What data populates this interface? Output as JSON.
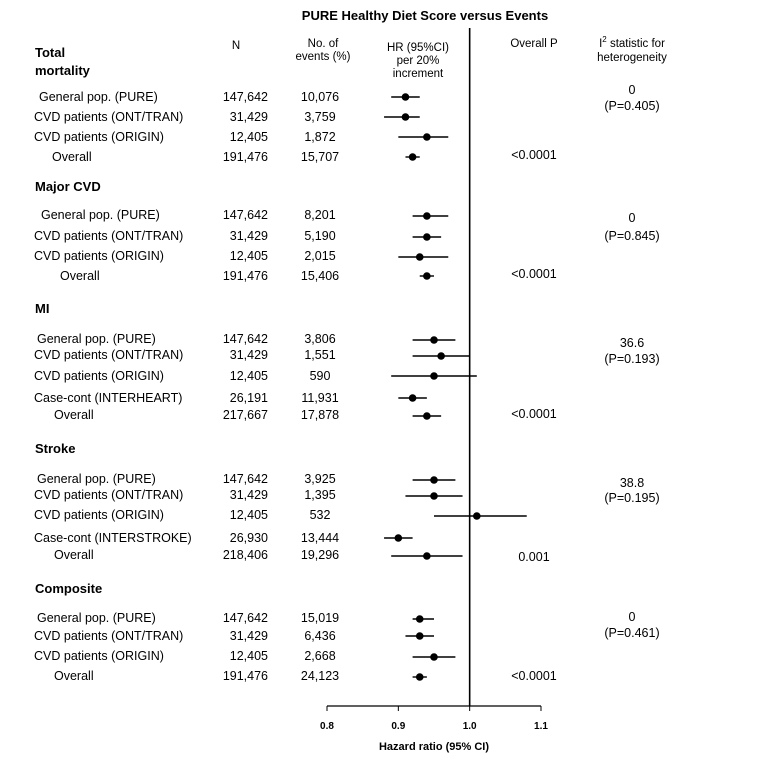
{
  "chart_data": {
    "type": "forest",
    "title": "PURE Healthy Diet Score versus Events",
    "xlabel": "Hazard ratio (95% CI)",
    "xlim": [
      0.8,
      1.1
    ],
    "xticks": [
      "0.8",
      "0.9",
      "1.0",
      "1.1"
    ],
    "reference_line": 1.0,
    "headers": {
      "n": "N",
      "events_line1": "No. of",
      "events_line2": "events (%)",
      "hr_line1": "HR (95%CI)",
      "hr_line2": "per 20%",
      "hr_line3": "increment",
      "p": "Overall P",
      "i2_prefix": "I",
      "i2_sup": "2",
      "i2_line1_rest": " statistic for",
      "i2_line2": "heterogeneity"
    },
    "groups": [
      {
        "name_line1": "Total",
        "name_line2": "mortality",
        "i2": "0",
        "i2_p": "(P=0.405)",
        "rows": [
          {
            "label": "General pop. (PURE)",
            "n": "147,642",
            "events": "10,076",
            "hr": 0.91,
            "lo": 0.89,
            "hi": 0.93
          },
          {
            "label": "CVD patients (ONT/TRAN)",
            "n": "31,429",
            "events": "3,759",
            "hr": 0.91,
            "lo": 0.88,
            "hi": 0.93
          },
          {
            "label": "CVD patients (ORIGIN)",
            "n": "12,405",
            "events": "1,872",
            "hr": 0.94,
            "lo": 0.9,
            "hi": 0.97
          },
          {
            "label": "Overall",
            "n": "191,476",
            "events": "15,707",
            "hr": 0.92,
            "lo": 0.91,
            "hi": 0.93,
            "p": "<0.0001"
          }
        ]
      },
      {
        "name_line1": "Major CVD",
        "name_line2": "",
        "i2": "0",
        "i2_p": "(P=0.845)",
        "rows": [
          {
            "label": "General pop. (PURE)",
            "n": "147,642",
            "events": "8,201",
            "hr": 0.94,
            "lo": 0.92,
            "hi": 0.97
          },
          {
            "label": "CVD patients (ONT/TRAN)",
            "n": "31,429",
            "events": "5,190",
            "hr": 0.94,
            "lo": 0.92,
            "hi": 0.96
          },
          {
            "label": "CVD patients (ORIGIN)",
            "n": "12,405",
            "events": "2,015",
            "hr": 0.93,
            "lo": 0.9,
            "hi": 0.97
          },
          {
            "label": "Overall",
            "n": "191,476",
            "events": "15,406",
            "hr": 0.94,
            "lo": 0.93,
            "hi": 0.95,
            "p": "<0.0001"
          }
        ]
      },
      {
        "name_line1": "MI",
        "name_line2": "",
        "i2": "36.6",
        "i2_p": "(P=0.193)",
        "rows": [
          {
            "label": "General pop. (PURE)",
            "n": "147,642",
            "events": "3,806",
            "hr": 0.95,
            "lo": 0.92,
            "hi": 0.98
          },
          {
            "label": "CVD patients (ONT/TRAN)",
            "n": "31,429",
            "events": "1,551",
            "hr": 0.96,
            "lo": 0.92,
            "hi": 1.0
          },
          {
            "label": "CVD patients (ORIGIN)",
            "n": "12,405",
            "events": "590",
            "hr": 0.95,
            "lo": 0.89,
            "hi": 1.01
          },
          {
            "label": "Case-cont (INTERHEART)",
            "n": "26,191",
            "events": "11,931",
            "hr": 0.92,
            "lo": 0.9,
            "hi": 0.94
          },
          {
            "label": "Overall",
            "n": "217,667",
            "events": "17,878",
            "hr": 0.94,
            "lo": 0.92,
            "hi": 0.96,
            "p": "<0.0001"
          }
        ]
      },
      {
        "name_line1": "Stroke",
        "name_line2": "",
        "i2": "38.8",
        "i2_p": "(P=0.195)",
        "rows": [
          {
            "label": "General pop. (PURE)",
            "n": "147,642",
            "events": "3,925",
            "hr": 0.95,
            "lo": 0.92,
            "hi": 0.98
          },
          {
            "label": "CVD patients (ONT/TRAN)",
            "n": "31,429",
            "events": "1,395",
            "hr": 0.95,
            "lo": 0.91,
            "hi": 0.99
          },
          {
            "label": "CVD patients (ORIGIN)",
            "n": "12,405",
            "events": "532",
            "hr": 1.01,
            "lo": 0.95,
            "hi": 1.08
          },
          {
            "label": "Case-cont (INTERSTROKE)",
            "n": "26,930",
            "events": "13,444",
            "hr": 0.9,
            "lo": 0.88,
            "hi": 0.92
          },
          {
            "label": "Overall",
            "n": "218,406",
            "events": "19,296",
            "hr": 0.94,
            "lo": 0.89,
            "hi": 0.99,
            "p": "0.001"
          }
        ]
      },
      {
        "name_line1": "Composite",
        "name_line2": "",
        "i2": "0",
        "i2_p": "(P=0.461)",
        "rows": [
          {
            "label": "General pop. (PURE)",
            "n": "147,642",
            "events": "15,019",
            "hr": 0.93,
            "lo": 0.92,
            "hi": 0.95
          },
          {
            "label": "CVD patients (ONT/TRAN)",
            "n": "31,429",
            "events": "6,436",
            "hr": 0.93,
            "lo": 0.91,
            "hi": 0.95
          },
          {
            "label": "CVD patients (ORIGIN)",
            "n": "12,405",
            "events": "2,668",
            "hr": 0.95,
            "lo": 0.92,
            "hi": 0.98
          },
          {
            "label": "Overall",
            "n": "191,476",
            "events": "24,123",
            "hr": 0.93,
            "lo": 0.92,
            "hi": 0.94,
            "p": "<0.0001"
          }
        ]
      }
    ]
  }
}
